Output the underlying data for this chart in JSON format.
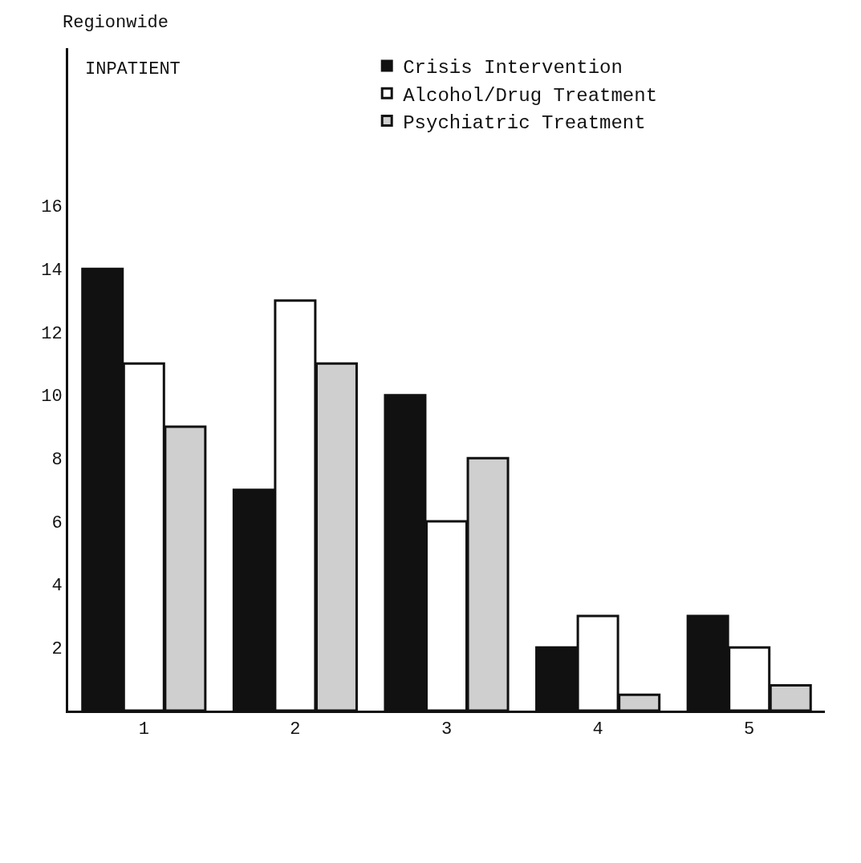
{
  "chart_data": {
    "type": "bar",
    "title": "Regionwide",
    "subtitle": "INPATIENT",
    "categories": [
      "1",
      "2",
      "3",
      "4",
      "5"
    ],
    "series": [
      {
        "name": "Crisis Intervention",
        "color": "#111111",
        "values": [
          14,
          7,
          10,
          2,
          3
        ]
      },
      {
        "name": "Alcohol/Drug Treatment",
        "color": "#ffffff",
        "values": [
          11,
          13,
          6,
          3,
          2
        ]
      },
      {
        "name": "Psychiatric Treatment",
        "color": "#cfcfcf",
        "values": [
          9,
          11,
          8,
          0.5,
          0.8
        ]
      }
    ],
    "ylim": [
      0,
      21
    ],
    "yticks": [
      2,
      4,
      6,
      8,
      10,
      12,
      14,
      16
    ],
    "grid": false,
    "legend": "top right"
  }
}
